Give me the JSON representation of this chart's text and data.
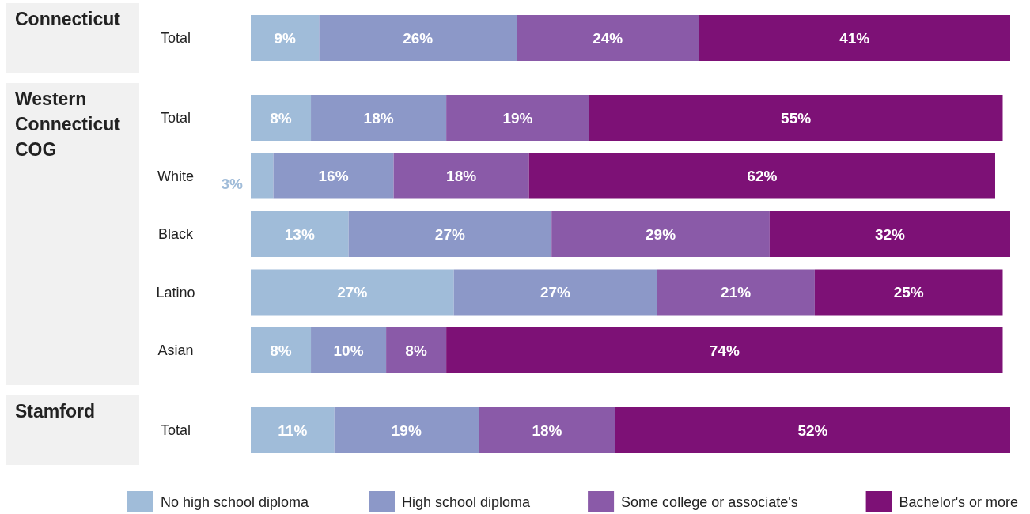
{
  "chart_data": [
    {
      "type": "bar",
      "orientation": "horizontal",
      "stacked": true,
      "title": "Connecticut",
      "categories": [
        "Total"
      ],
      "series": [
        {
          "color": "#a0bcd9",
          "values": [
            9
          ],
          "value_labels": [
            "9%"
          ]
        },
        {
          "color": "#8c98c8",
          "values": [
            26
          ],
          "value_labels": [
            "26%"
          ]
        },
        {
          "color": "#8a5aa8",
          "values": [
            24
          ],
          "value_labels": [
            "24%"
          ]
        },
        {
          "color": "#7d1176",
          "values": [
            41
          ],
          "value_labels": [
            "41%"
          ]
        }
      ]
    },
    {
      "type": "bar",
      "orientation": "horizontal",
      "stacked": true,
      "title": "Western Connecticut COG",
      "categories": [
        "Total",
        "White",
        "Black",
        "Latino",
        "Asian"
      ],
      "series": [
        {
          "color": "#a0bcd9",
          "values": [
            8,
            3,
            13,
            27,
            8
          ],
          "value_labels": [
            "8%",
            "3%",
            "13%",
            "27%",
            "8%"
          ]
        },
        {
          "color": "#8c98c8",
          "values": [
            18,
            16,
            27,
            27,
            10
          ],
          "value_labels": [
            "18%",
            "16%",
            "27%",
            "27%",
            "10%"
          ]
        },
        {
          "color": "#8a5aa8",
          "values": [
            19,
            18,
            29,
            21,
            8
          ],
          "value_labels": [
            "19%",
            "18%",
            "29%",
            "21%",
            "8%"
          ]
        },
        {
          "color": "#7d1176",
          "values": [
            55,
            62,
            32,
            25,
            74
          ],
          "value_labels": [
            "55%",
            "62%",
            "32%",
            "25%",
            "74%"
          ]
        }
      ]
    },
    {
      "type": "bar",
      "orientation": "horizontal",
      "stacked": true,
      "title": "Stamford",
      "categories": [
        "Total"
      ],
      "legend": "bottom",
      "series": [
        {
          "name": "No high school diploma",
          "color": "#a0bcd9",
          "values": [
            11
          ],
          "value_labels": [
            "11%"
          ]
        },
        {
          "name": "High school diploma",
          "color": "#8c98c8",
          "values": [
            19
          ],
          "value_labels": [
            "19%"
          ]
        },
        {
          "name": "Some college or associate's",
          "color": "#8a5aa8",
          "values": [
            18
          ],
          "value_labels": [
            "18%"
          ]
        },
        {
          "name": "Bachelor's or more",
          "color": "#7d1176",
          "values": [
            52
          ],
          "value_labels": [
            "52%"
          ]
        }
      ]
    }
  ]
}
